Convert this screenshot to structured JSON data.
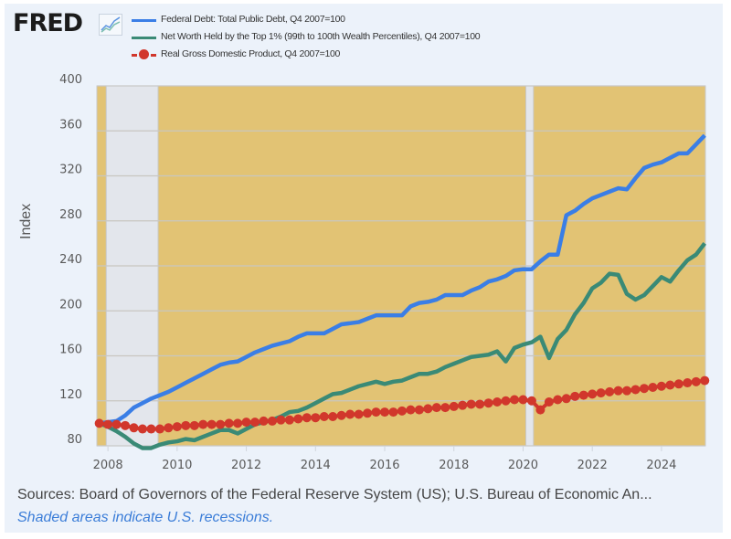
{
  "header": {
    "logo_text": "FRED",
    "logo_icon": "line-chart-icon"
  },
  "footer": {
    "sources": "Sources: Board of Governors of the Federal Reserve System (US); U.S. Bureau of Economic An...",
    "note": "Shaded areas indicate U.S. recessions."
  },
  "chart_data": {
    "type": "line",
    "title": "",
    "xlabel": "",
    "ylabel": "Index",
    "xlim": [
      2007.68,
      2025.27
    ],
    "ylim": [
      80,
      400
    ],
    "yticks": [
      80,
      120,
      160,
      200,
      240,
      280,
      320,
      360,
      400
    ],
    "xticks": [
      2008,
      2010,
      2012,
      2014,
      2016,
      2018,
      2020,
      2022,
      2024
    ],
    "grid": true,
    "legend_position": "top",
    "colors": {
      "plot_background": "#e2c374",
      "recession_shade": "#e3e6ec",
      "gridline": "#c8c6c0"
    },
    "recessions": [
      {
        "start": 2007.95,
        "end": 2009.45
      },
      {
        "start": 2020.08,
        "end": 2020.3
      }
    ],
    "x": [
      2007.75,
      2008.0,
      2008.25,
      2008.5,
      2008.75,
      2009.0,
      2009.25,
      2009.5,
      2009.75,
      2010.0,
      2010.25,
      2010.5,
      2010.75,
      2011.0,
      2011.25,
      2011.5,
      2011.75,
      2012.0,
      2012.25,
      2012.5,
      2012.75,
      2013.0,
      2013.25,
      2013.5,
      2013.75,
      2014.0,
      2014.25,
      2014.5,
      2014.75,
      2015.0,
      2015.25,
      2015.5,
      2015.75,
      2016.0,
      2016.25,
      2016.5,
      2016.75,
      2017.0,
      2017.25,
      2017.5,
      2017.75,
      2018.0,
      2018.25,
      2018.5,
      2018.75,
      2019.0,
      2019.25,
      2019.5,
      2019.75,
      2020.0,
      2020.25,
      2020.5,
      2020.75,
      2021.0,
      2021.25,
      2021.5,
      2021.75,
      2022.0,
      2022.25,
      2022.5,
      2022.75,
      2023.0,
      2023.25,
      2023.5,
      2023.75,
      2024.0,
      2024.25,
      2024.5,
      2024.75,
      2025.0,
      2025.25
    ],
    "series": [
      {
        "name": "Federal Debt: Total Public Debt, Q4 2007=100",
        "color": "#3a7ee6",
        "style": "line",
        "values": [
          100,
          101,
          102,
          107,
          114,
          118,
          122,
          125,
          128,
          132,
          136,
          140,
          144,
          148,
          152,
          154,
          155,
          159,
          163,
          166,
          169,
          171,
          173,
          177,
          180,
          180,
          180,
          184,
          188,
          189,
          190,
          193,
          196,
          196,
          196,
          196,
          204,
          207,
          208,
          210,
          214,
          214,
          214,
          218,
          221,
          226,
          228,
          231,
          236,
          237,
          237,
          244,
          250,
          250,
          285,
          289,
          295,
          300,
          303,
          306,
          309,
          308,
          318,
          327,
          330,
          332,
          336,
          340,
          340,
          348,
          356
        ]
      },
      {
        "name": "Net Worth Held by the Top 1% (99th to 100th Wealth Percentiles), Q4 2007=100",
        "color": "#3a8a76",
        "style": "line",
        "values": [
          100,
          97,
          93,
          88,
          82,
          78,
          78,
          81,
          83,
          84,
          86,
          85,
          88,
          91,
          94,
          94,
          91,
          95,
          99,
          101,
          103,
          106,
          110,
          111,
          114,
          118,
          122,
          126,
          127,
          130,
          133,
          135,
          137,
          135,
          137,
          138,
          141,
          144,
          144,
          146,
          150,
          153,
          156,
          159,
          160,
          161,
          164,
          155,
          167,
          170,
          172,
          177,
          158,
          175,
          183,
          197,
          207,
          220,
          225,
          233,
          232,
          215,
          210,
          214,
          222,
          230,
          226,
          236,
          245,
          250,
          260
        ]
      },
      {
        "name": "Real Gross Domestic Product, Q4 2007=100",
        "color": "#d1372c",
        "style": "dotted-markers",
        "values": [
          100,
          99,
          99,
          98,
          96,
          95,
          95,
          95,
          96,
          97,
          98,
          98,
          99,
          99,
          99,
          100,
          100,
          101,
          101,
          102,
          102,
          103,
          103,
          104,
          105,
          105,
          106,
          106,
          107,
          108,
          108,
          109,
          110,
          110,
          110,
          111,
          112,
          112,
          113,
          114,
          114,
          115,
          116,
          117,
          117,
          118,
          119,
          120,
          121,
          121,
          120,
          112,
          119,
          121,
          122,
          124,
          125,
          126,
          127,
          128,
          129,
          129,
          130,
          131,
          132,
          133,
          134,
          135,
          136,
          137,
          138
        ]
      }
    ]
  }
}
